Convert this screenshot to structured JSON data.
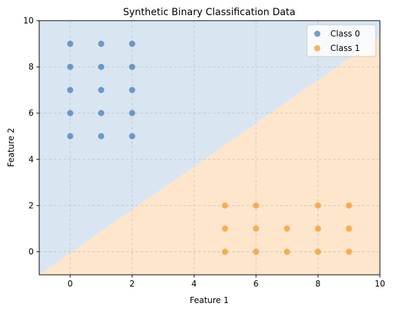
{
  "chart_data": {
    "type": "scatter",
    "title": "Synthetic Binary Classification Data",
    "xlabel": "Feature 1",
    "ylabel": "Feature 2",
    "xlim": [
      -1,
      10
    ],
    "ylim": [
      -1,
      10
    ],
    "xticks": [
      0,
      2,
      4,
      6,
      8,
      10
    ],
    "yticks": [
      0,
      2,
      4,
      6,
      8,
      10
    ],
    "grid": true,
    "legend_position": "top-right",
    "decision_boundary": {
      "x": [
        -1,
        10
      ],
      "y": [
        -1,
        9.3
      ],
      "region_above_color": "#d9e6f2",
      "region_below_color": "#fee6cc"
    },
    "series": [
      {
        "name": "Class 0",
        "color": "#4a7fb5",
        "points": [
          [
            0,
            9
          ],
          [
            0,
            8
          ],
          [
            0,
            7
          ],
          [
            0,
            6
          ],
          [
            0,
            5
          ],
          [
            1,
            9
          ],
          [
            1,
            8
          ],
          [
            1,
            7
          ],
          [
            1,
            6
          ],
          [
            1,
            5
          ],
          [
            2,
            9
          ],
          [
            2,
            8
          ],
          [
            2,
            7
          ],
          [
            2,
            6
          ],
          [
            2,
            5
          ]
        ]
      },
      {
        "name": "Class 1",
        "color": "#f59a2e",
        "points": [
          [
            5,
            2
          ],
          [
            5,
            1
          ],
          [
            5,
            0
          ],
          [
            6,
            2
          ],
          [
            6,
            1
          ],
          [
            6,
            0
          ],
          [
            7,
            1
          ],
          [
            7,
            0
          ],
          [
            8,
            2
          ],
          [
            8,
            1
          ],
          [
            8,
            0
          ],
          [
            9,
            2
          ],
          [
            9,
            1
          ],
          [
            9,
            0
          ]
        ]
      }
    ]
  }
}
